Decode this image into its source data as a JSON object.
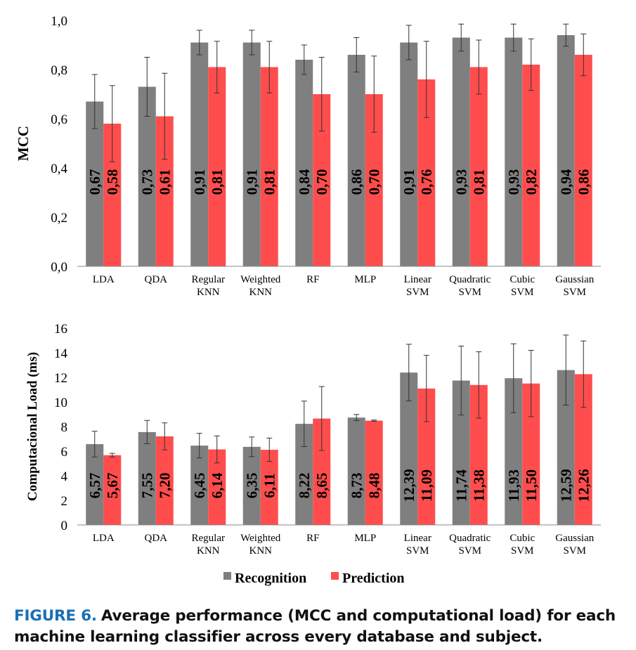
{
  "colors": {
    "recognition": "#7f7f7f",
    "prediction": "#ff4d4d",
    "axis": "#000000",
    "caption_label": "#1a6fb5"
  },
  "legend": {
    "placement": "bottom-center",
    "recognition": "Recognition",
    "prediction": "Prediction"
  },
  "caption": {
    "label": "FIGURE 6.",
    "text": "Average performance (MCC and computational load) for each machine learning classifier across every database and subject."
  },
  "chart_data": [
    {
      "type": "bar",
      "title": "",
      "xlabel": "",
      "ylabel": "MCC",
      "ylim": [
        0,
        1.0
      ],
      "yticks": [
        "0,0",
        "0,2",
        "0,4",
        "0,6",
        "0,8",
        "1,0"
      ],
      "grid": false,
      "categories": [
        [
          "LDA"
        ],
        [
          "QDA"
        ],
        [
          "Regular",
          "KNN"
        ],
        [
          "Weighted",
          "KNN"
        ],
        [
          "RF"
        ],
        [
          "MLP"
        ],
        [
          "Linear",
          "SVM"
        ],
        [
          "Quadratic",
          "SVM"
        ],
        [
          "Cubic",
          "SVM"
        ],
        [
          "Gaussian",
          "SVM"
        ]
      ],
      "series": [
        {
          "name": "Recognition",
          "values": [
            0.67,
            0.73,
            0.91,
            0.91,
            0.84,
            0.86,
            0.91,
            0.93,
            0.93,
            0.94
          ],
          "labels": [
            "0,67",
            "0,73",
            "0,91",
            "0,91",
            "0,84",
            "0,86",
            "0,91",
            "0,93",
            "0,93",
            "0,94"
          ],
          "error": [
            0.11,
            0.12,
            0.05,
            0.05,
            0.06,
            0.07,
            0.07,
            0.055,
            0.055,
            0.045
          ]
        },
        {
          "name": "Prediction",
          "values": [
            0.58,
            0.61,
            0.81,
            0.81,
            0.7,
            0.7,
            0.76,
            0.81,
            0.82,
            0.86
          ],
          "labels": [
            "0,58",
            "0,61",
            "0,81",
            "0,81",
            "0,70",
            "0,70",
            "0,76",
            "0,81",
            "0,82",
            "0,86"
          ],
          "error": [
            0.155,
            0.175,
            0.105,
            0.105,
            0.15,
            0.155,
            0.155,
            0.11,
            0.105,
            0.085
          ]
        }
      ]
    },
    {
      "type": "bar",
      "title": "",
      "xlabel": "",
      "ylabel": "Computacional Load (ms)",
      "ylim": [
        0,
        16
      ],
      "yticks": [
        "0",
        "2",
        "4",
        "6",
        "8",
        "10",
        "12",
        "14",
        "16"
      ],
      "grid": false,
      "categories": [
        [
          "LDA"
        ],
        [
          "QDA"
        ],
        [
          "Regular",
          "KNN"
        ],
        [
          "Weighted",
          "KNN"
        ],
        [
          "RF"
        ],
        [
          "MLP"
        ],
        [
          "Linear",
          "SVM"
        ],
        [
          "Quadratic",
          "SVM"
        ],
        [
          "Cubic",
          "SVM"
        ],
        [
          "Gaussian",
          "SVM"
        ]
      ],
      "series": [
        {
          "name": "Recognition",
          "values": [
            6.57,
            7.55,
            6.45,
            6.35,
            8.22,
            8.73,
            12.39,
            11.74,
            11.93,
            12.59
          ],
          "labels": [
            "6,57",
            "7,55",
            "6,45",
            "6,35",
            "8,22",
            "8,73",
            "12,39",
            "11,74",
            "11,93",
            "12,59"
          ],
          "error": [
            1.05,
            0.95,
            1.0,
            0.8,
            1.85,
            0.25,
            2.3,
            2.8,
            2.8,
            2.85
          ]
        },
        {
          "name": "Prediction",
          "values": [
            5.67,
            7.2,
            6.14,
            6.11,
            8.65,
            8.48,
            11.09,
            11.38,
            11.5,
            12.26
          ],
          "labels": [
            "5,67",
            "7,20",
            "6,14",
            "6,11",
            "8,65",
            "8,48",
            "11,09",
            "11,38",
            "11,50",
            "12,26"
          ],
          "error": [
            0.15,
            1.1,
            1.1,
            0.95,
            2.6,
            0.05,
            2.7,
            2.7,
            2.7,
            2.7
          ]
        }
      ]
    }
  ]
}
